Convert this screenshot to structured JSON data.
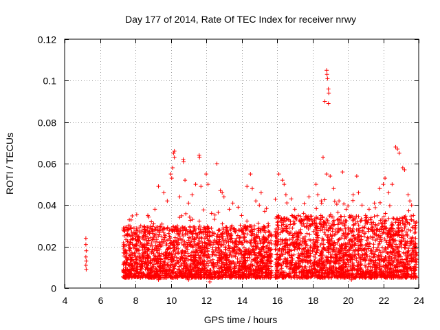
{
  "chart_data": {
    "type": "scatter",
    "title": "Day 177 of 2014, Rate Of TEC Index for receiver nrwy",
    "xlabel": "GPS time / hours",
    "ylabel": "ROTI / TECUs",
    "xlim": [
      4,
      24
    ],
    "ylim": [
      0,
      0.12
    ],
    "x_ticks": [
      "4",
      "6",
      "8",
      "10",
      "12",
      "14",
      "16",
      "18",
      "20",
      "22",
      "24"
    ],
    "y_ticks": [
      "0",
      "0.02",
      "0.04",
      "0.06",
      "0.08",
      "0.1",
      "0.12"
    ],
    "x_tick_values": [
      4,
      6,
      8,
      10,
      12,
      14,
      16,
      18,
      20,
      22,
      24
    ],
    "y_tick_values": [
      0,
      0.02,
      0.04,
      0.06,
      0.07999999,
      0.1,
      0.12
    ],
    "grid": true,
    "marker": "+",
    "color": "#ff0000",
    "series": [
      {
        "name": "ROTI",
        "points": [
          [
            5.2,
            0.024
          ],
          [
            5.2,
            0.021
          ],
          [
            5.22,
            0.018
          ],
          [
            5.2,
            0.015
          ],
          [
            5.22,
            0.013
          ],
          [
            5.2,
            0.011
          ],
          [
            5.22,
            0.009
          ],
          [
            7.35,
            0.021
          ],
          [
            7.4,
            0.018
          ],
          [
            7.45,
            0.015
          ],
          [
            7.5,
            0.012
          ],
          [
            7.55,
            0.009
          ],
          [
            7.6,
            0.006
          ],
          [
            7.7,
            0.022
          ],
          [
            7.8,
            0.017
          ],
          [
            7.9,
            0.013
          ],
          [
            8.0,
            0.019
          ],
          [
            8.1,
            0.015
          ],
          [
            8.2,
            0.025
          ],
          [
            8.3,
            0.03
          ],
          [
            8.5,
            0.028
          ],
          [
            8.7,
            0.035
          ],
          [
            8.9,
            0.032
          ],
          [
            9.1,
            0.038
          ],
          [
            9.3,
            0.049
          ],
          [
            9.6,
            0.046
          ],
          [
            9.8,
            0.042
          ],
          [
            10.0,
            0.055
          ],
          [
            10.05,
            0.053
          ],
          [
            10.1,
            0.058
          ],
          [
            10.15,
            0.065
          ],
          [
            10.2,
            0.066
          ],
          [
            10.2,
            0.063
          ],
          [
            10.5,
            0.044
          ],
          [
            10.7,
            0.062
          ],
          [
            10.72,
            0.061
          ],
          [
            10.8,
            0.052
          ],
          [
            11.0,
            0.041
          ],
          [
            11.2,
            0.045
          ],
          [
            11.4,
            0.05
          ],
          [
            11.6,
            0.064
          ],
          [
            11.62,
            0.063
          ],
          [
            11.7,
            0.049
          ],
          [
            12.0,
            0.055
          ],
          [
            12.1,
            0.05
          ],
          [
            12.3,
            0.036
          ],
          [
            12.6,
            0.06
          ],
          [
            12.8,
            0.047
          ],
          [
            12.9,
            0.046
          ],
          [
            13.0,
            0.044
          ],
          [
            13.3,
            0.038
          ],
          [
            13.5,
            0.041
          ],
          [
            13.8,
            0.039
          ],
          [
            14.0,
            0.035
          ],
          [
            14.3,
            0.049
          ],
          [
            14.5,
            0.055
          ],
          [
            14.6,
            0.048
          ],
          [
            14.8,
            0.042
          ],
          [
            15.0,
            0.04
          ],
          [
            15.1,
            0.046
          ],
          [
            15.3,
            0.037
          ],
          [
            15.5,
            0.031
          ],
          [
            12.2,
            0.003
          ],
          [
            9.3,
            0.004
          ],
          [
            11.0,
            0.004
          ],
          [
            16.1,
            0.055
          ],
          [
            16.3,
            0.052
          ],
          [
            16.4,
            0.05
          ],
          [
            16.5,
            0.045
          ],
          [
            16.8,
            0.043
          ],
          [
            17.0,
            0.038
          ],
          [
            17.2,
            0.035
          ],
          [
            17.5,
            0.036
          ],
          [
            17.8,
            0.044
          ],
          [
            18.2,
            0.05
          ],
          [
            18.3,
            0.045
          ],
          [
            18.5,
            0.042
          ],
          [
            18.6,
            0.063
          ],
          [
            18.7,
            0.09
          ],
          [
            18.8,
            0.105
          ],
          [
            18.82,
            0.103
          ],
          [
            18.85,
            0.101
          ],
          [
            18.9,
            0.096
          ],
          [
            18.92,
            0.094
          ],
          [
            18.9,
            0.089
          ],
          [
            18.8,
            0.055
          ],
          [
            19.0,
            0.054
          ],
          [
            19.2,
            0.048
          ],
          [
            19.5,
            0.042
          ],
          [
            19.7,
            0.056
          ],
          [
            19.9,
            0.038
          ],
          [
            20.2,
            0.004
          ],
          [
            20.3,
            0.045
          ],
          [
            20.5,
            0.054
          ],
          [
            20.6,
            0.046
          ],
          [
            20.8,
            0.04
          ],
          [
            21.0,
            0.035
          ],
          [
            21.2,
            0.038
          ],
          [
            21.5,
            0.041
          ],
          [
            21.8,
            0.048
          ],
          [
            22.0,
            0.05
          ],
          [
            22.1,
            0.053
          ],
          [
            22.3,
            0.046
          ],
          [
            22.5,
            0.05
          ],
          [
            22.7,
            0.068
          ],
          [
            22.8,
            0.067
          ],
          [
            22.9,
            0.065
          ],
          [
            23.1,
            0.058
          ],
          [
            23.2,
            0.057
          ],
          [
            23.4,
            0.045
          ],
          [
            23.5,
            0.042
          ],
          [
            23.6,
            0.04
          ],
          [
            23.7,
            0.035
          ],
          [
            23.8,
            0.02
          ],
          [
            23.4,
            0.009
          ]
        ],
        "dense_band": {
          "description": "continuous ROTI observations, roughly 0.005-0.035 TECU with bursts above",
          "segments": [
            {
              "x_start": 7.3,
              "x_end": 15.7,
              "y_min": 0.005,
              "y_max": 0.03
            },
            {
              "x_start": 15.9,
              "x_end": 23.9,
              "y_min": 0.005,
              "y_max": 0.035
            }
          ]
        }
      }
    ]
  }
}
